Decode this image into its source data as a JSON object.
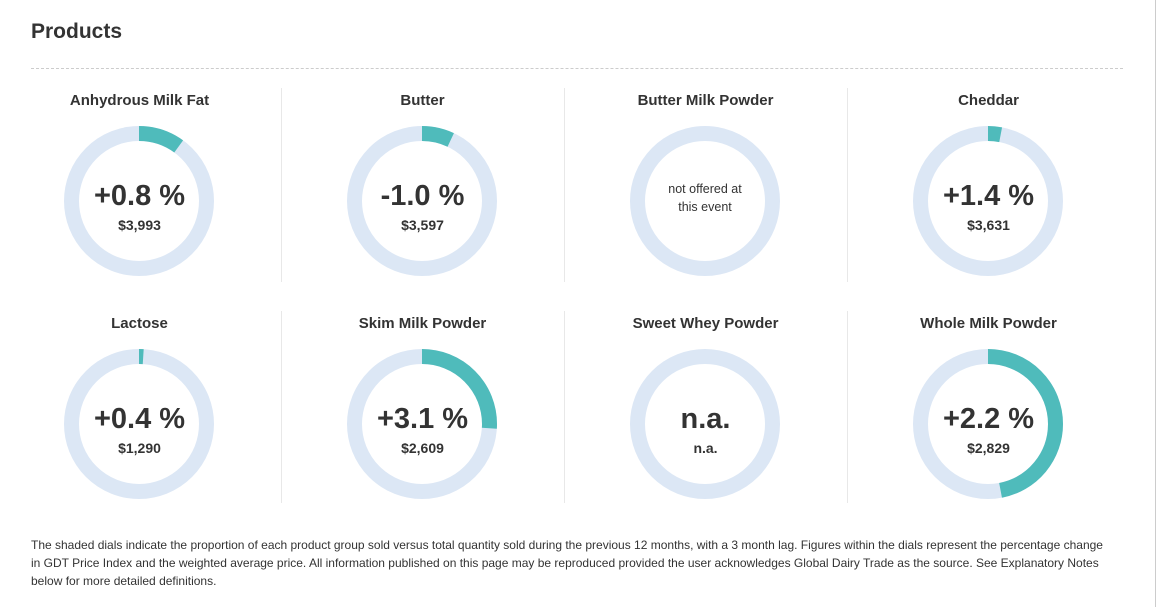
{
  "title": "Products",
  "colors": {
    "fill": "#4fbbbb",
    "track": "#dce7f5"
  },
  "products": [
    {
      "name": "Anhydrous Milk Fat",
      "change": "+0.8 %",
      "price": "$3,993",
      "share": 0.1
    },
    {
      "name": "Butter",
      "change": "-1.0 %",
      "price": "$3,597",
      "share": 0.07
    },
    {
      "name": "Butter Milk Powder",
      "note": "not offered at this event",
      "share": 0
    },
    {
      "name": "Cheddar",
      "change": "+1.4 %",
      "price": "$3,631",
      "share": 0.03
    },
    {
      "name": "Lactose",
      "change": "+0.4 %",
      "price": "$1,290",
      "share": 0.01
    },
    {
      "name": "Skim Milk Powder",
      "change": "+3.1 %",
      "price": "$2,609",
      "share": 0.26
    },
    {
      "name": "Sweet Whey Powder",
      "change": "n.a.",
      "price": "n.a.",
      "share": 0
    },
    {
      "name": "Whole Milk Powder",
      "change": "+2.2 %",
      "price": "$2,829",
      "share": 0.47
    }
  ],
  "footnote": "The shaded dials indicate the proportion of each product group sold versus total quantity sold during the previous 12 months, with a 3 month lag. Figures within the dials represent the percentage change in GDT Price Index and the weighted average price. All information published on this page may be reproduced provided the user acknowledges Global Dairy Trade as the source. See Explanatory Notes below for more detailed definitions."
}
